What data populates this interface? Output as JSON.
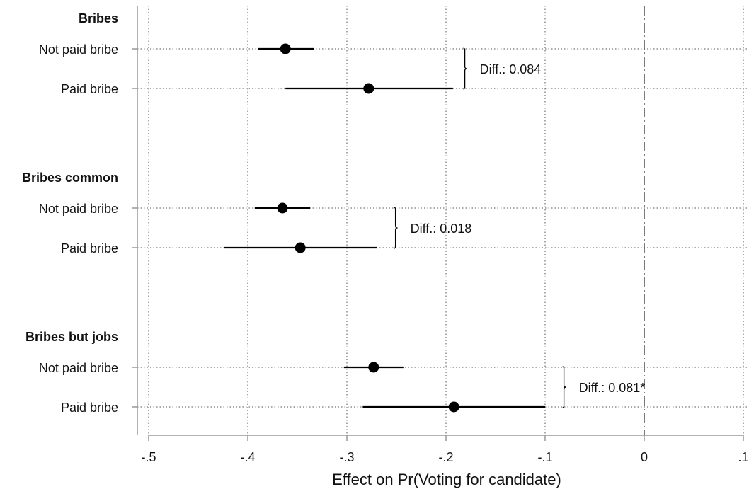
{
  "chart_data": {
    "type": "coefficient-plot",
    "xlabel": "Effect on Pr(Voting for candidate)",
    "xlim": [
      -0.5,
      0.1
    ],
    "xticks": [
      -0.5,
      -0.4,
      -0.3,
      -0.2,
      -0.1,
      0,
      0.1
    ],
    "xtick_labels": [
      "-.5",
      "-.4",
      "-.3",
      "-.2",
      "-.1",
      "0",
      ".1"
    ],
    "reference_line": 0,
    "grid": "dotted",
    "groups": [
      {
        "name": "Bribes",
        "rows": [
          {
            "label": "Not paid bribe",
            "estimate": -0.362,
            "ci": [
              -0.39,
              -0.333
            ]
          },
          {
            "label": "Paid bribe",
            "estimate": -0.278,
            "ci": [
              -0.362,
              -0.193
            ]
          }
        ],
        "diff": "Diff.: 0.084",
        "bracket_x": -0.181
      },
      {
        "name": "Bribes common",
        "rows": [
          {
            "label": "Not paid bribe",
            "estimate": -0.365,
            "ci": [
              -0.393,
              -0.337
            ]
          },
          {
            "label": "Paid bribe",
            "estimate": -0.347,
            "ci": [
              -0.424,
              -0.27
            ]
          }
        ],
        "diff": "Diff.: 0.018",
        "bracket_x": -0.251
      },
      {
        "name": "Bribes but jobs",
        "rows": [
          {
            "label": "Not paid bribe",
            "estimate": -0.273,
            "ci": [
              -0.303,
              -0.243
            ]
          },
          {
            "label": "Paid bribe",
            "estimate": -0.192,
            "ci": [
              -0.284,
              -0.1
            ]
          }
        ],
        "diff": "Diff.: 0.081*",
        "bracket_x": -0.081
      }
    ]
  }
}
